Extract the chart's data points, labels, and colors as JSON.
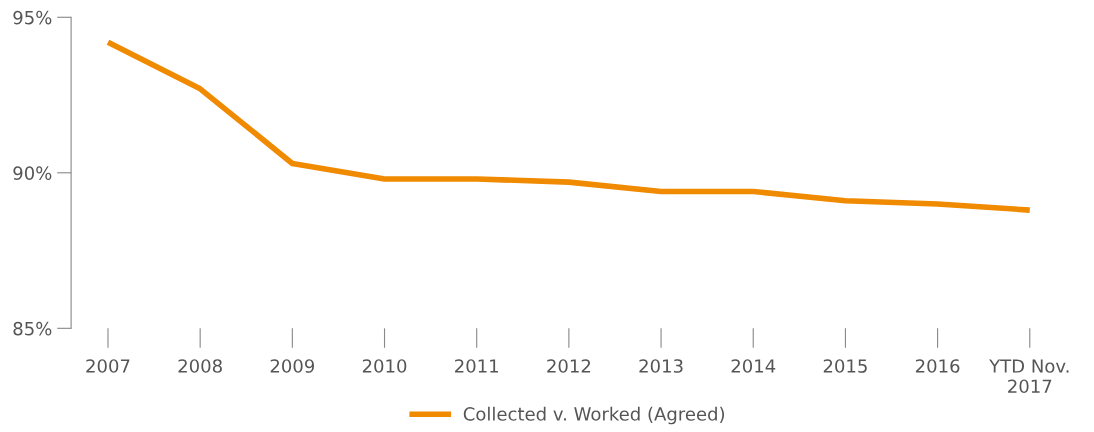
{
  "chart_data": {
    "type": "line",
    "categories": [
      "2007",
      "2008",
      "2009",
      "2010",
      "2011",
      "2012",
      "2013",
      "2014",
      "2015",
      "2016",
      "YTD Nov.\n2017"
    ],
    "series": [
      {
        "name": "Collected v. Worked (Agreed)",
        "color": "#f08a00",
        "values": [
          94.2,
          92.7,
          90.3,
          89.8,
          89.8,
          89.7,
          89.4,
          89.4,
          89.1,
          89.0,
          88.8
        ]
      }
    ],
    "ylim": [
      85,
      95
    ],
    "yticks": [
      {
        "value": 85,
        "label": "85%"
      },
      {
        "value": 90,
        "label": "90%"
      },
      {
        "value": 95,
        "label": "95%"
      }
    ],
    "grid": false,
    "legend": "bottom",
    "marker": "none",
    "line_style": "solid"
  }
}
